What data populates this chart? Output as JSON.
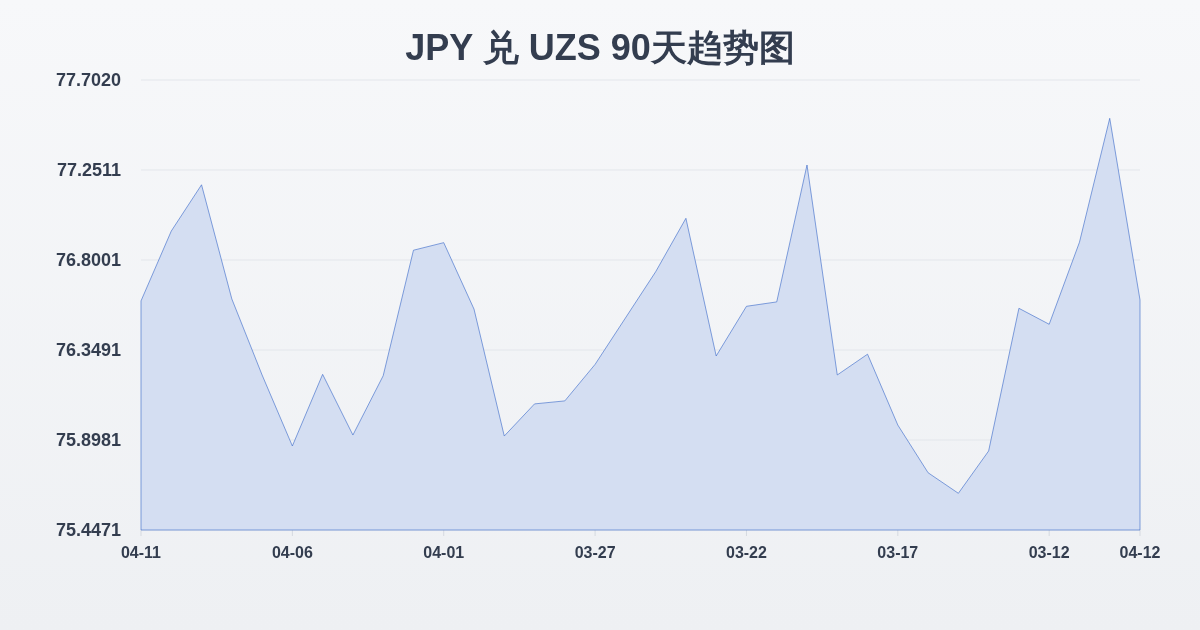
{
  "chart_data": {
    "type": "area",
    "title": "JPY 兑 UZS 90天趋势图",
    "categories": [
      "04-11",
      null,
      null,
      null,
      null,
      "04-06",
      null,
      null,
      null,
      null,
      "04-01",
      null,
      null,
      null,
      null,
      "03-27",
      null,
      null,
      null,
      null,
      "03-22",
      null,
      null,
      null,
      null,
      "03-17",
      null,
      null,
      null,
      null,
      "03-12",
      null,
      null,
      "04-12"
    ],
    "values": [
      76.595,
      76.945,
      77.177,
      76.605,
      76.224,
      75.868,
      76.227,
      75.923,
      76.22,
      76.849,
      76.887,
      76.554,
      75.918,
      76.079,
      76.094,
      76.277,
      76.509,
      76.741,
      77.009,
      76.319,
      76.568,
      76.59,
      77.276,
      76.224,
      76.328,
      75.973,
      75.734,
      75.631,
      75.843,
      76.558,
      76.478,
      76.889,
      77.51,
      76.6
    ],
    "color": "#3465c8",
    "ylim": [
      75.4471,
      77.702
    ],
    "yticks": [
      75.4471,
      75.8981,
      76.3491,
      76.8001,
      77.2511,
      {
        "value": 77.702,
        "label": "77.7020"
      }
    ],
    "grid": "y"
  }
}
